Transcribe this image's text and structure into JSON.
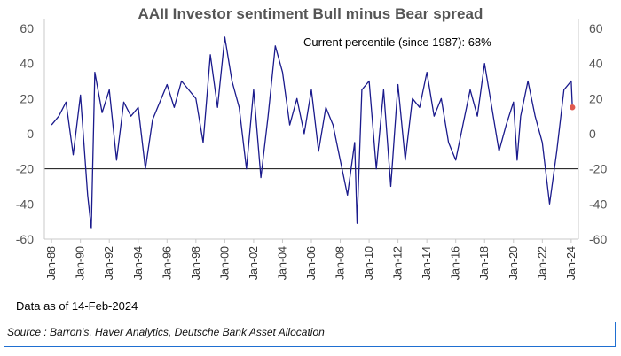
{
  "chart_data": {
    "type": "line",
    "title": "AAII Investor sentiment Bull minus Bear spread",
    "subtitle": "Current percentile (since 1987): 68%",
    "ylim": [
      -60,
      60
    ],
    "y_ticks": [
      60,
      40,
      20,
      0,
      -20,
      -40,
      -60
    ],
    "x_range": [
      "1987-07",
      "2024-07"
    ],
    "x_tick_labels": [
      "Jan-88",
      "Jan-90",
      "Jan-92",
      "Jan-94",
      "Jan-96",
      "Jan-98",
      "Jan-00",
      "Jan-02",
      "Jan-04",
      "Jan-06",
      "Jan-08",
      "Jan-10",
      "Jan-12",
      "Jan-14",
      "Jan-16",
      "Jan-18",
      "Jan-20",
      "Jan-22",
      "Jan-24"
    ],
    "reference_lines": [
      30,
      -20
    ],
    "series_color": "#1a1a8c",
    "current_point": {
      "x": "2024-02",
      "y": 15,
      "color": "#e05a4f"
    },
    "series": [
      {
        "x": [
          "1988-01",
          "1988-07",
          "1989-01",
          "1989-07",
          "1990-01",
          "1990-07",
          "1990-10",
          "1991-01",
          "1991-07",
          "1992-01",
          "1992-07",
          "1993-01",
          "1993-07",
          "1994-01",
          "1994-07",
          "1995-01",
          "1995-07",
          "1996-01",
          "1996-07",
          "1997-01",
          "1997-07",
          "1998-01",
          "1998-07",
          "1999-01",
          "1999-07",
          "2000-01",
          "2000-07",
          "2001-01",
          "2001-07",
          "2002-01",
          "2002-07",
          "2003-01",
          "2003-07",
          "2004-01",
          "2004-07",
          "2005-01",
          "2005-07",
          "2006-01",
          "2006-07",
          "2007-01",
          "2007-07",
          "2008-01",
          "2008-07",
          "2009-01",
          "2009-03",
          "2009-07",
          "2010-01",
          "2010-07",
          "2011-01",
          "2011-07",
          "2012-01",
          "2012-07",
          "2013-01",
          "2013-07",
          "2014-01",
          "2014-07",
          "2015-01",
          "2015-07",
          "2016-01",
          "2016-07",
          "2017-01",
          "2017-07",
          "2018-01",
          "2018-07",
          "2019-01",
          "2019-07",
          "2020-01",
          "2020-04",
          "2020-07",
          "2021-01",
          "2021-07",
          "2022-01",
          "2022-07",
          "2023-01",
          "2023-07",
          "2024-01",
          "2024-02"
        ],
        "values": [
          5,
          10,
          18,
          -12,
          22,
          -35,
          -54,
          35,
          12,
          25,
          -15,
          18,
          10,
          15,
          -20,
          8,
          18,
          28,
          15,
          30,
          25,
          20,
          -5,
          45,
          15,
          55,
          30,
          15,
          -20,
          25,
          -25,
          10,
          50,
          35,
          5,
          20,
          0,
          25,
          -10,
          15,
          5,
          -15,
          -35,
          -5,
          -51,
          25,
          30,
          -20,
          25,
          -30,
          28,
          -15,
          20,
          15,
          35,
          10,
          20,
          -5,
          -15,
          5,
          25,
          10,
          40,
          15,
          -10,
          5,
          18,
          -15,
          10,
          30,
          10,
          -5,
          -40,
          -10,
          25,
          30,
          15
        ]
      }
    ]
  },
  "labels": {
    "title": "AAII Investor sentiment Bull minus Bear spread",
    "subtitle": "Current percentile (since 1987): 68%",
    "note": "Data as of 14-Feb-2024",
    "source": "Source : Barron's, Haver Analytics, Deutsche Bank Asset Allocation"
  }
}
